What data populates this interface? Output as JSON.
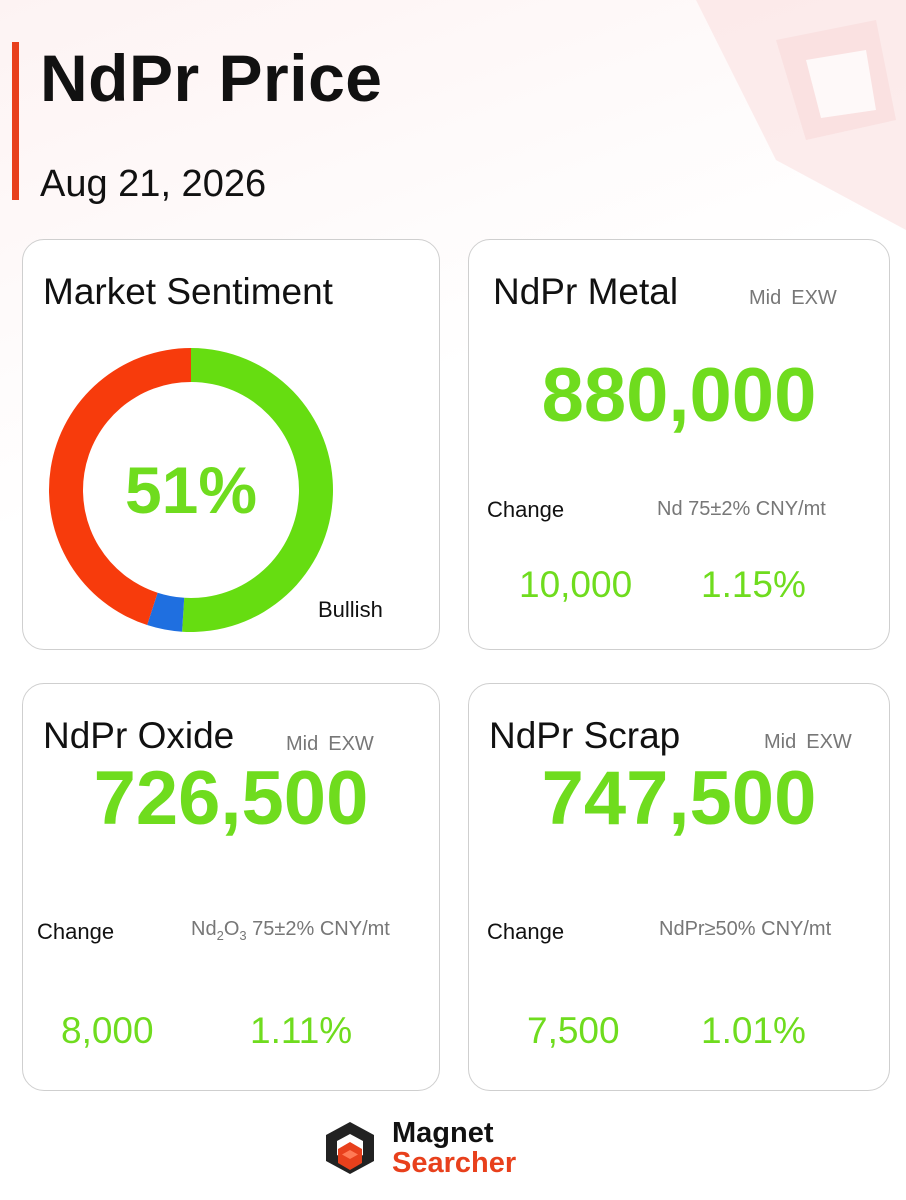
{
  "header": {
    "title": "NdPr Price",
    "date": "Aug 21, 2026"
  },
  "sentiment": {
    "title": "Market Sentiment",
    "percent_label": "51%",
    "legend_label": "Bullish",
    "segments": [
      {
        "key": "bullish",
        "fraction": 0.51,
        "color": "#66dd11"
      },
      {
        "key": "neutral",
        "fraction": 0.04,
        "color": "#1f6fe0"
      },
      {
        "key": "bearish",
        "fraction": 0.45,
        "color": "#f73b0c"
      }
    ]
  },
  "metal": {
    "title": "NdPr Metal",
    "mid": "Mid",
    "exw": "EXW",
    "price": "880,000",
    "change_label": "Change",
    "spec": "Nd 75±2% CNY/mt",
    "change_value": "10,000",
    "change_percent": "1.15%"
  },
  "oxide": {
    "title": "NdPr Oxide",
    "mid": "Mid",
    "exw": "EXW",
    "price": "726,500",
    "change_label": "Change",
    "spec_prefix": "Nd",
    "spec_sub1": "2",
    "spec_mid": "O",
    "spec_sub2": "3",
    "spec_rest": " 75±2% CNY/mt",
    "change_value": "8,000",
    "change_percent": "1.11%"
  },
  "scrap": {
    "title": "NdPr Scrap",
    "mid": "Mid",
    "exw": "EXW",
    "price": "747,500",
    "change_label": "Change",
    "spec": "NdPr≥50% CNY/mt",
    "change_value": "7,500",
    "change_percent": "1.01%"
  },
  "footer": {
    "logo_line1": "Magnet",
    "logo_line2": "Searcher"
  },
  "colors": {
    "accent": "#e8401c",
    "positive": "#6fdc1e"
  }
}
